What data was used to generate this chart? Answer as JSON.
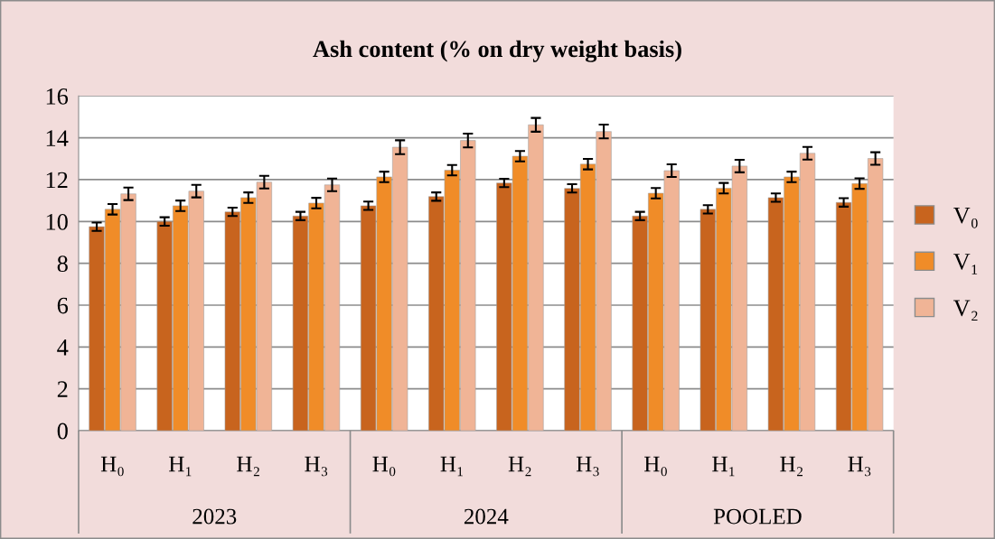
{
  "chart_data": {
    "type": "bar",
    "title": "Ash content (% on dry weight basis)",
    "categories": [
      "H₀",
      "H₁",
      "H₂",
      "H₃",
      "H₀",
      "H₁",
      "H₂",
      "H₃",
      "H₀",
      "H₁",
      "H₂",
      "H₃"
    ],
    "annotations": [
      "2023",
      "2024",
      "POOLED"
    ],
    "series": [
      {
        "name": "V₀",
        "color": "#c8641e",
        "values": [
          9.75,
          10.0,
          10.46,
          10.26,
          10.75,
          11.19,
          11.84,
          11.58,
          10.26,
          10.58,
          11.14,
          10.91
        ],
        "errors": [
          0.2,
          0.2,
          0.2,
          0.2,
          0.2,
          0.2,
          0.2,
          0.2,
          0.2,
          0.2,
          0.2,
          0.2
        ]
      },
      {
        "name": "V₁",
        "color": "#f08c28",
        "values": [
          10.58,
          10.75,
          11.14,
          10.88,
          12.13,
          12.45,
          13.12,
          12.74,
          11.35,
          11.59,
          12.13,
          11.81
        ],
        "errors": [
          0.25,
          0.25,
          0.25,
          0.25,
          0.25,
          0.25,
          0.25,
          0.25,
          0.25,
          0.25,
          0.25,
          0.25
        ]
      },
      {
        "name": "V₂",
        "color": "#f0b496",
        "values": [
          11.32,
          11.45,
          11.88,
          11.75,
          13.55,
          13.87,
          14.62,
          14.3,
          12.43,
          12.65,
          13.26,
          13.01
        ],
        "errors": [
          0.3,
          0.3,
          0.3,
          0.3,
          0.33,
          0.33,
          0.33,
          0.33,
          0.3,
          0.3,
          0.3,
          0.3
        ]
      }
    ],
    "ylim": [
      0,
      16
    ],
    "yticks": [
      0,
      2,
      4,
      6,
      8,
      10,
      12,
      14,
      16
    ],
    "grid": "y",
    "legend": "right"
  }
}
